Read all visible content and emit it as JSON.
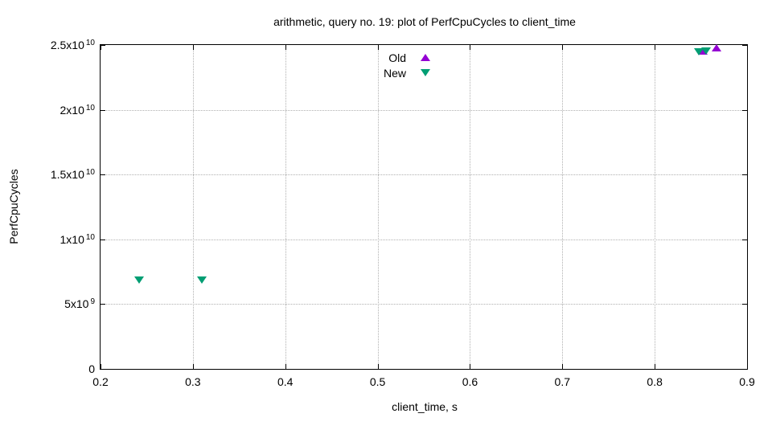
{
  "title": "arithmetic, query no. 19: plot of PerfCpuCycles to client_time",
  "colors": {
    "background": "#ffffff",
    "axis": "#000000",
    "grid": "#b0b0b0",
    "old_series": "#9400d3",
    "new_series": "#009e73"
  },
  "chart_data": {
    "type": "scatter",
    "title": "arithmetic, query no. 19: plot of PerfCpuCycles to client_time",
    "xlabel": "client_time, s",
    "ylabel": "PerfCpuCycles",
    "xlim": [
      0.2,
      0.9
    ],
    "ylim": [
      0,
      25000000000.0
    ],
    "grid": true,
    "legend_position": "inside-top-center",
    "xticks": [
      0.2,
      0.3,
      0.4,
      0.5,
      0.6,
      0.7,
      0.8,
      0.9
    ],
    "xtick_labels": [
      "0.2",
      "0.3",
      "0.4",
      "0.5",
      "0.6",
      "0.7",
      "0.8",
      "0.9"
    ],
    "yticks": [
      0,
      5000000000.0,
      10000000000.0,
      15000000000.0,
      20000000000.0,
      25000000000.0
    ],
    "ytick_labels": [
      {
        "t": "0",
        "s": ""
      },
      {
        "t": "5x10",
        "s": "9"
      },
      {
        "t": "1x10",
        "s": "10"
      },
      {
        "t": "1.5x10",
        "s": "10"
      },
      {
        "t": "2x10",
        "s": "10"
      },
      {
        "t": "2.5x10",
        "s": "10"
      }
    ],
    "series": [
      {
        "name": "Old",
        "marker": "triangle-up",
        "color": "#9400d3",
        "points": [
          [
            0.852,
            24500000000.0
          ],
          [
            0.867,
            24760000000.0
          ]
        ]
      },
      {
        "name": "New",
        "marker": "triangle-down",
        "color": "#009e73",
        "points": [
          [
            0.242,
            6850000000.0
          ],
          [
            0.31,
            6850000000.0
          ],
          [
            0.848,
            24430000000.0
          ],
          [
            0.856,
            24480000000.0
          ]
        ]
      }
    ]
  }
}
